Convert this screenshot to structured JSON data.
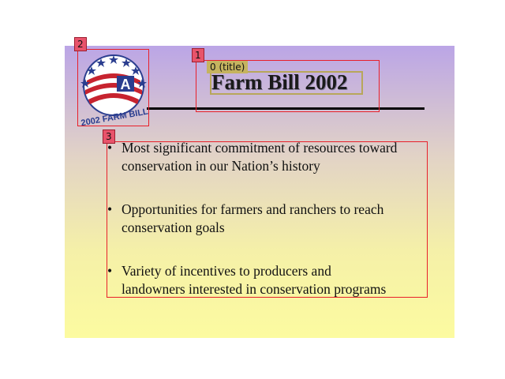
{
  "slide": {
    "title": "Farm Bill 2002",
    "logo_text": "2002 FARM BILL",
    "logo_icon": "farm-bill-seal",
    "bullets": [
      "Most significant commitment of resources toward\nconservation in our Nation’s history",
      "Opportunities for farmers and ranchers to reach\nconservation goals",
      "Variety of incentives to producers and\nlandowners interested in conservation programs"
    ],
    "bullet_char": "•",
    "colors": {
      "gradient_top": "#bba5e6",
      "gradient_bottom": "#fcfba0",
      "annotation": "#e8202a"
    }
  },
  "annotations": {
    "title_tag": "1",
    "title_label": "0 (title)",
    "logo_tag": "2",
    "body_tag": "3"
  }
}
